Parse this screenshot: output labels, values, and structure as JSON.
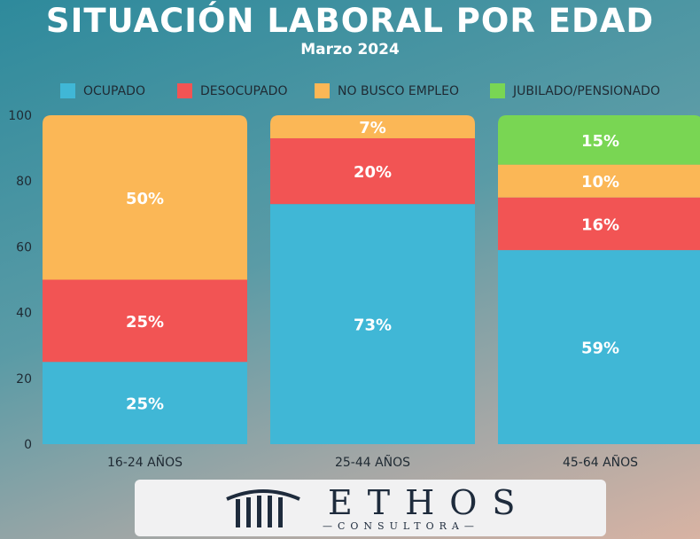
{
  "title": "SITUACIÓN LABORAL POR EDAD",
  "subtitle": "Marzo 2024",
  "colors": {
    "ocupado": "#40b7d6",
    "desocupado": "#f25454",
    "no_busco": "#fbb756",
    "jubilado": "#79d653",
    "text_white": "#ffffff",
    "axis_text": "#1f2a33"
  },
  "chart_data": {
    "type": "bar",
    "stacked": true,
    "categories": [
      "16-24 AÑOS",
      "25-44 AÑOS",
      "45-64 AÑOS"
    ],
    "series": [
      {
        "name": "OCUPADO",
        "values": [
          25,
          73,
          59
        ],
        "labels": [
          "25%",
          "73%",
          "59%"
        ]
      },
      {
        "name": "DESOCUPADO",
        "values": [
          25,
          20,
          16
        ],
        "labels": [
          "25%",
          "20%",
          "16%"
        ]
      },
      {
        "name": "NO BUSCO EMPLEO",
        "values": [
          50,
          7,
          10
        ],
        "labels": [
          "50%",
          "7%",
          "10%"
        ]
      },
      {
        "name": "JUBILADO/PENSIONADO",
        "values": [
          0,
          0,
          15
        ],
        "labels": [
          "",
          "",
          "15%"
        ]
      }
    ],
    "yticks": [
      0,
      20,
      40,
      60,
      80,
      100
    ],
    "ylim": [
      0,
      100
    ],
    "legend_position": "top",
    "grid": false
  },
  "logo": {
    "name": "ETHOS",
    "tagline": "—CONSULTORA—"
  }
}
